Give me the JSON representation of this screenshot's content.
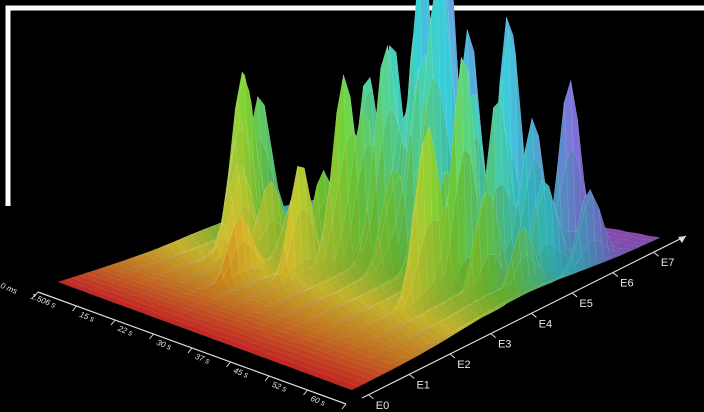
{
  "chart_data": {
    "type": "surface-3d",
    "title": "",
    "xlabel": "",
    "ylabel": "",
    "x_ticks": [
      "0 ms",
      "1.506 s",
      "15 s",
      "22 s",
      "30 s",
      "37 s",
      "45 s",
      "52 s",
      "60 s"
    ],
    "y_ticks": [
      "E0",
      "E1",
      "E2",
      "E3",
      "E4",
      "E5",
      "E6",
      "E7"
    ],
    "z_range": [
      0,
      1
    ],
    "colormap": [
      "#ff1e1e",
      "#ff8c1a",
      "#ffe633",
      "#79d936",
      "#37cfd9",
      "#9b59e6",
      "#c24ad9"
    ],
    "peaks": [
      {
        "t": 0.1,
        "e": 0.55,
        "h": 0.4
      },
      {
        "t": 0.12,
        "e": 0.48,
        "h": 0.55
      },
      {
        "t": 0.14,
        "e": 0.45,
        "h": 0.35
      },
      {
        "t": 0.17,
        "e": 0.42,
        "h": 0.28
      },
      {
        "t": 0.2,
        "e": 0.4,
        "h": 0.26
      },
      {
        "t": 0.24,
        "e": 0.45,
        "h": 0.22
      },
      {
        "t": 0.28,
        "e": 0.5,
        "h": 0.2
      },
      {
        "t": 0.3,
        "e": 0.3,
        "h": 0.18
      },
      {
        "t": 0.35,
        "e": 0.52,
        "h": 0.25
      },
      {
        "t": 0.4,
        "e": 0.4,
        "h": 0.35
      },
      {
        "t": 0.42,
        "e": 0.6,
        "h": 0.58
      },
      {
        "t": 0.44,
        "e": 0.5,
        "h": 0.55
      },
      {
        "t": 0.46,
        "e": 0.55,
        "h": 0.45
      },
      {
        "t": 0.48,
        "e": 0.62,
        "h": 0.65
      },
      {
        "t": 0.5,
        "e": 0.58,
        "h": 0.6
      },
      {
        "t": 0.52,
        "e": 0.63,
        "h": 0.4
      },
      {
        "t": 0.54,
        "e": 0.66,
        "h": 0.95
      },
      {
        "t": 0.56,
        "e": 0.55,
        "h": 0.3
      },
      {
        "t": 0.58,
        "e": 0.62,
        "h": 0.62
      },
      {
        "t": 0.6,
        "e": 0.68,
        "h": 1.0
      },
      {
        "t": 0.62,
        "e": 0.65,
        "h": 0.8
      },
      {
        "t": 0.63,
        "e": 0.6,
        "h": 0.5
      },
      {
        "t": 0.66,
        "e": 0.7,
        "h": 0.7
      },
      {
        "t": 0.7,
        "e": 0.65,
        "h": 0.5
      },
      {
        "t": 0.74,
        "e": 0.55,
        "h": 0.35
      },
      {
        "t": 0.76,
        "e": 0.62,
        "h": 0.58
      },
      {
        "t": 0.78,
        "e": 0.45,
        "h": 0.55
      },
      {
        "t": 0.8,
        "e": 0.55,
        "h": 0.7
      },
      {
        "t": 0.82,
        "e": 0.68,
        "h": 0.85
      },
      {
        "t": 0.84,
        "e": 0.62,
        "h": 0.55
      },
      {
        "t": 0.86,
        "e": 0.72,
        "h": 0.45
      },
      {
        "t": 0.88,
        "e": 0.55,
        "h": 0.35
      },
      {
        "t": 0.9,
        "e": 0.8,
        "h": 0.55
      },
      {
        "t": 0.92,
        "e": 0.7,
        "h": 0.3
      },
      {
        "t": 0.95,
        "e": 0.6,
        "h": 0.2
      },
      {
        "t": 0.97,
        "e": 0.8,
        "h": 0.25
      }
    ],
    "grid": true,
    "legend": "none"
  }
}
